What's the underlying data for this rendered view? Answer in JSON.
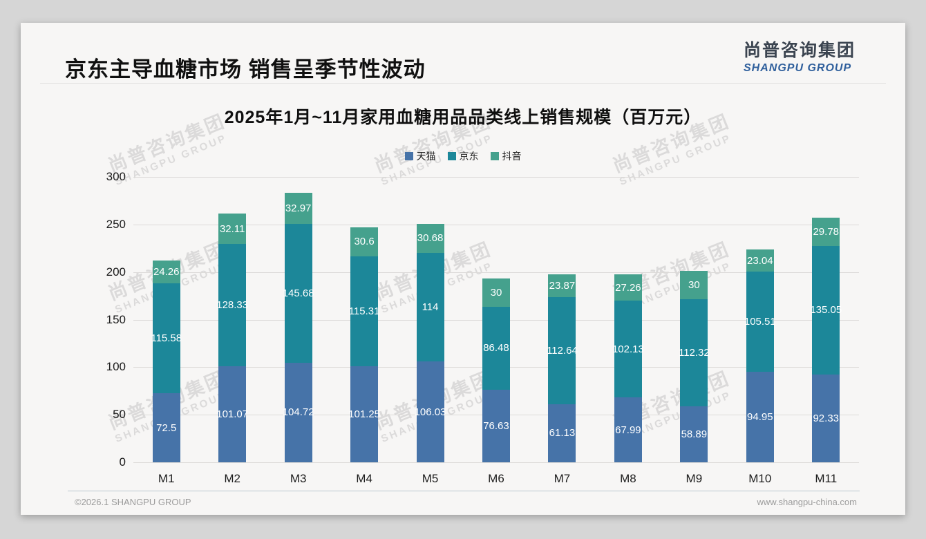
{
  "page": {
    "title": "京东主导血糖市场 销售呈季节性波动",
    "logo": {
      "cn": "尚普咨询集团",
      "en": "SHANGPU GROUP"
    },
    "watermark": {
      "cn": "尚普咨询集团",
      "en": "SHANGPU GROUP"
    },
    "footer": {
      "left": "©2026.1 SHANGPU GROUP",
      "right": "www.shangpu-china.com"
    }
  },
  "chart_data": {
    "type": "bar",
    "stacked": true,
    "title": "2025年1月~11月家用血糖用品品类线上销售规模（百万元）",
    "categories": [
      "M1",
      "M2",
      "M3",
      "M4",
      "M5",
      "M6",
      "M7",
      "M8",
      "M9",
      "M10",
      "M11"
    ],
    "series": [
      {
        "name": "天猫",
        "color": "#4673a8",
        "values": [
          72.5,
          101.07,
          104.72,
          101.25,
          106.03,
          76.63,
          61.13,
          67.99,
          58.89,
          94.95,
          92.33
        ]
      },
      {
        "name": "京东",
        "color": "#1c8799",
        "values": [
          115.58,
          128.33,
          145.68,
          115.31,
          114,
          86.48,
          112.64,
          102.13,
          112.32,
          105.51,
          135.05
        ]
      },
      {
        "name": "抖音",
        "color": "#45a18d",
        "values": [
          24.26,
          32.11,
          32.97,
          30.6,
          30.68,
          30,
          23.87,
          27.26,
          30,
          23.04,
          29.78
        ]
      }
    ],
    "xlabel": "",
    "ylabel": "",
    "ylim": [
      0,
      300
    ],
    "yticks": [
      0,
      50,
      100,
      150,
      200,
      250,
      300
    ],
    "grid": true,
    "legend_position": "top"
  }
}
